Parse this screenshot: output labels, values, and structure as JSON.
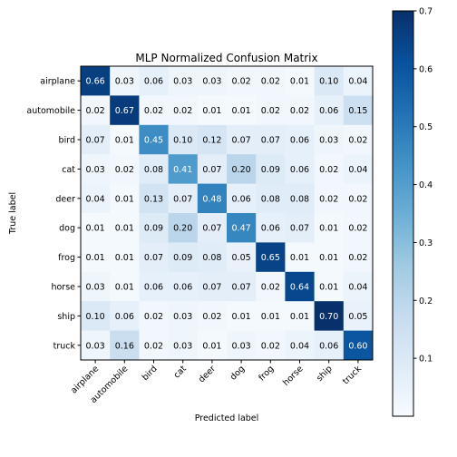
{
  "chart_data": {
    "type": "heatmap",
    "title": "MLP Normalized Confusion Matrix",
    "xlabel": "Predicted label",
    "ylabel": "True label",
    "categories": [
      "airplane",
      "automobile",
      "bird",
      "cat",
      "deer",
      "dog",
      "frog",
      "horse",
      "ship",
      "truck"
    ],
    "values": [
      [
        0.66,
        0.03,
        0.06,
        0.03,
        0.03,
        0.02,
        0.02,
        0.01,
        0.1,
        0.04
      ],
      [
        0.02,
        0.67,
        0.02,
        0.02,
        0.01,
        0.01,
        0.02,
        0.02,
        0.06,
        0.15
      ],
      [
        0.07,
        0.01,
        0.45,
        0.1,
        0.12,
        0.07,
        0.07,
        0.06,
        0.03,
        0.02
      ],
      [
        0.03,
        0.02,
        0.08,
        0.41,
        0.07,
        0.2,
        0.09,
        0.06,
        0.02,
        0.04
      ],
      [
        0.04,
        0.01,
        0.13,
        0.07,
        0.48,
        0.06,
        0.08,
        0.08,
        0.02,
        0.02
      ],
      [
        0.01,
        0.01,
        0.09,
        0.2,
        0.07,
        0.47,
        0.06,
        0.07,
        0.01,
        0.02
      ],
      [
        0.01,
        0.01,
        0.07,
        0.09,
        0.08,
        0.05,
        0.65,
        0.01,
        0.01,
        0.02
      ],
      [
        0.03,
        0.01,
        0.06,
        0.06,
        0.07,
        0.07,
        0.02,
        0.64,
        0.01,
        0.04
      ],
      [
        0.1,
        0.06,
        0.02,
        0.03,
        0.02,
        0.01,
        0.01,
        0.01,
        0.7,
        0.05
      ],
      [
        0.03,
        0.16,
        0.02,
        0.03,
        0.01,
        0.03,
        0.02,
        0.04,
        0.06,
        0.6
      ]
    ],
    "colormap": "Blues",
    "colorbar": {
      "range": [
        0.0,
        0.7
      ],
      "ticks": [
        0.1,
        0.2,
        0.3,
        0.4,
        0.5,
        0.6,
        0.7
      ],
      "tick_labels": [
        "0.1",
        "0.2",
        "0.3",
        "0.4",
        "0.5",
        "0.6",
        "0.7"
      ]
    },
    "grid": false
  }
}
